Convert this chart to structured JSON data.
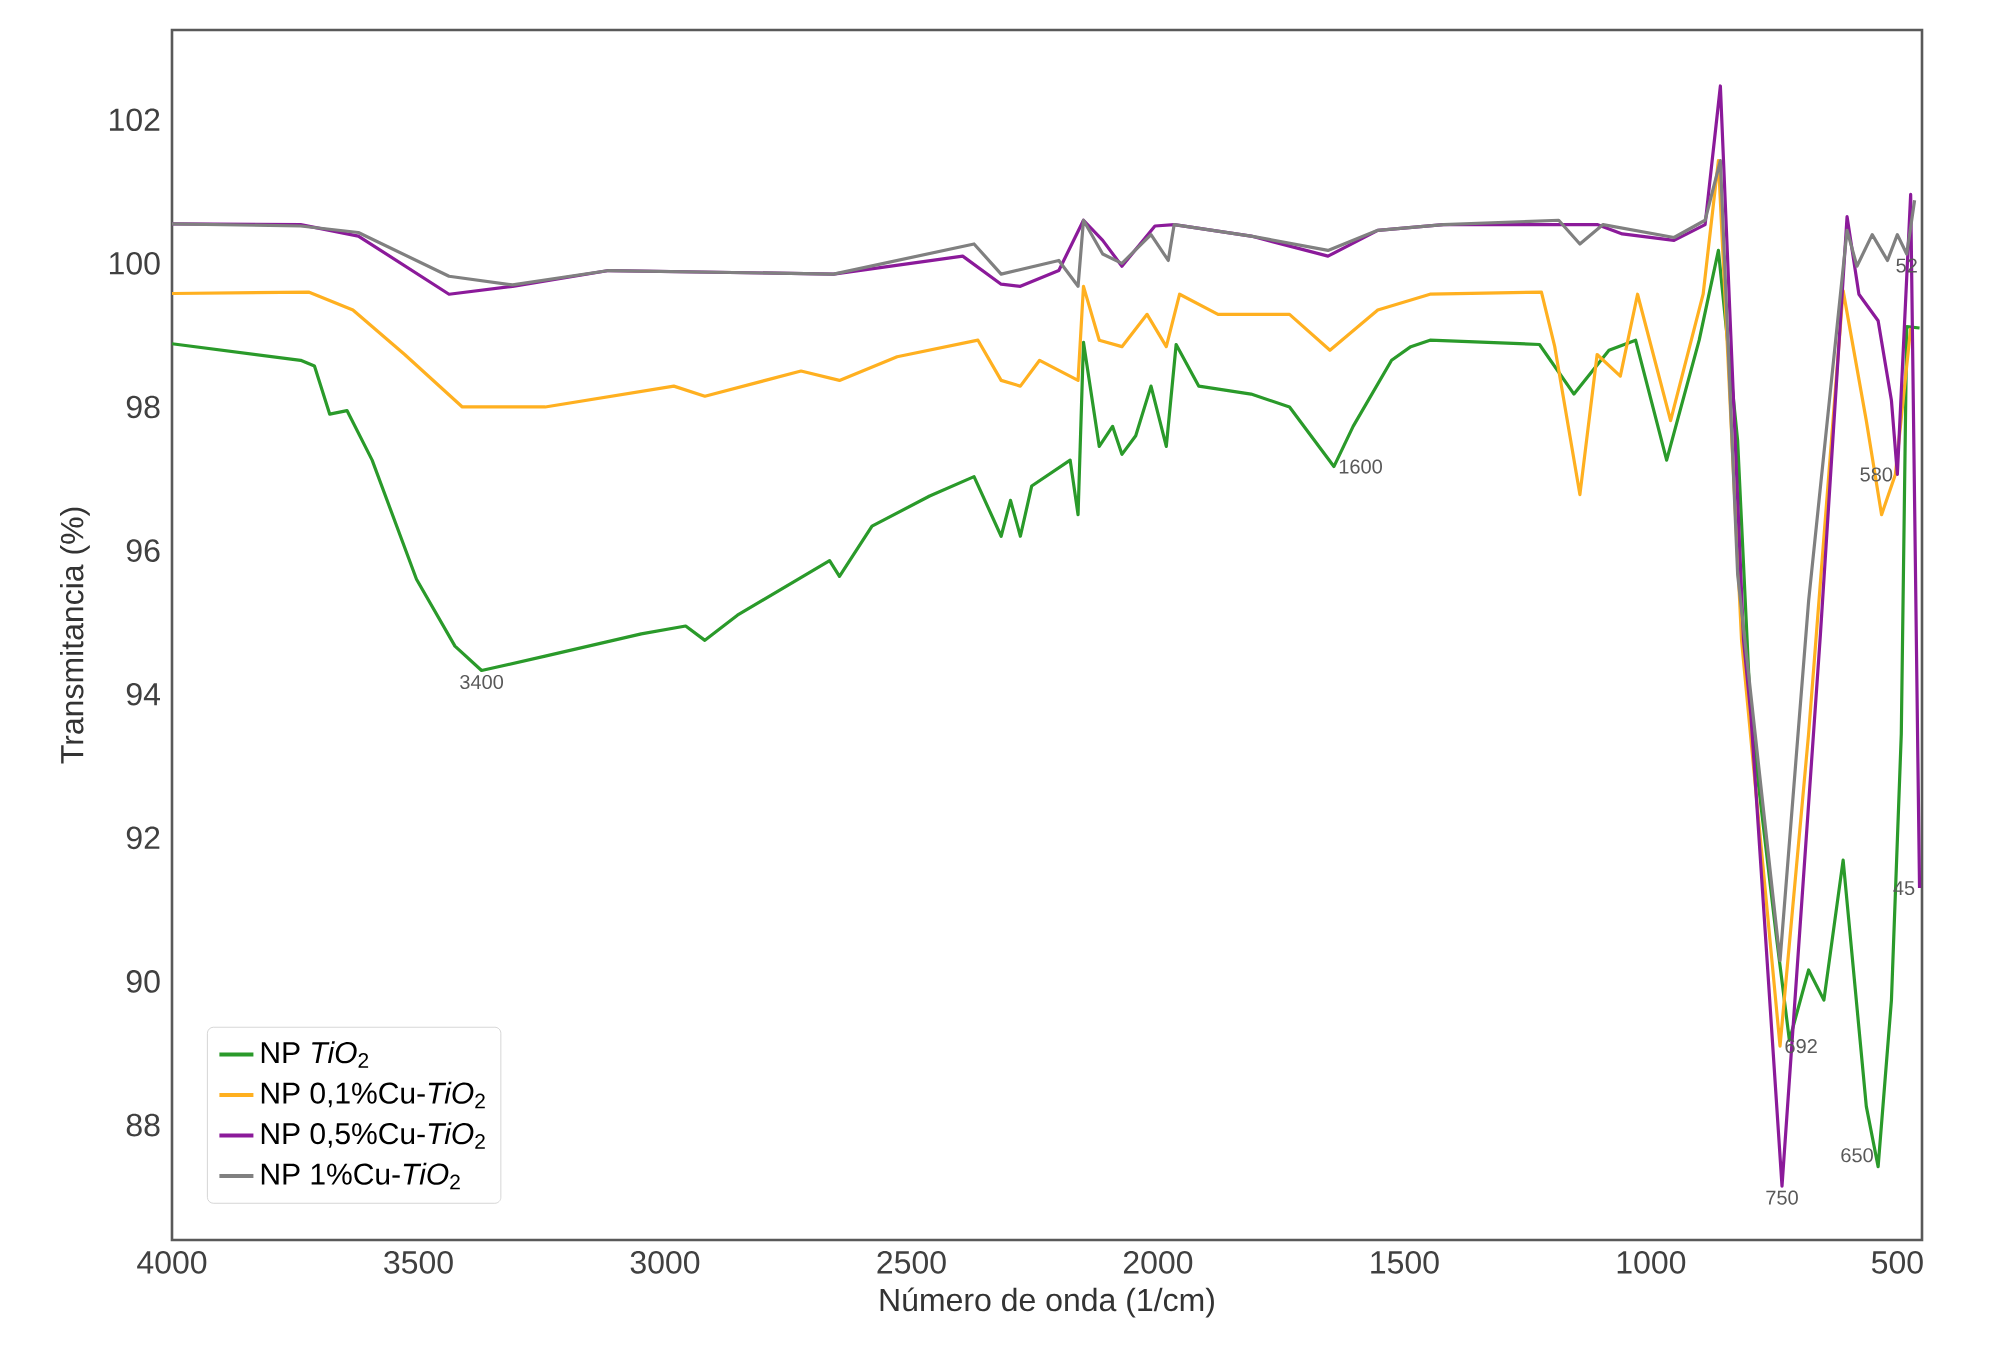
{
  "chart_data": {
    "type": "line",
    "xlabel": "Número de onda (1/cm)",
    "ylabel": "Transmitancia (%)",
    "xlim": [
      4000,
      450
    ],
    "ylim": [
      86.4,
      103.25
    ],
    "xticks": [
      4000,
      3500,
      3000,
      2500,
      2000,
      1500,
      1000,
      500
    ],
    "yticks": [
      88,
      90,
      92,
      94,
      96,
      98,
      100,
      102
    ],
    "grid": false,
    "legend": "bottom left",
    "series": [
      {
        "name": "NP *TiO*$_{2}$",
        "color": "#2a9a2a",
        "x": [
          4000,
          3739,
          3711,
          3680,
          3645,
          3594,
          3504,
          3426,
          3372,
          3243,
          3048,
          2958,
          2919,
          2853,
          2666,
          2646,
          2580,
          2463,
          2373,
          2318,
          2299,
          2279,
          2256,
          2178,
          2162,
          2151,
          2119,
          2092,
          2073,
          2045,
          2014,
          1983,
          1963,
          1917,
          1811,
          1733,
          1682,
          1643,
          1604,
          1526,
          1487,
          1448,
          1226,
          1156,
          1085,
          1031,
          968,
          902,
          863,
          824,
          797,
          746,
          719,
          680,
          649,
          610,
          563,
          539,
          512,
          492,
          481,
          455
        ],
        "values": [
          98.88,
          98.65,
          98.57,
          97.9,
          97.95,
          97.26,
          95.6,
          94.67,
          94.33,
          94.53,
          94.84,
          94.95,
          94.75,
          95.1,
          95.86,
          95.64,
          96.34,
          96.76,
          97.03,
          96.2,
          96.7,
          96.2,
          96.9,
          97.26,
          96.5,
          98.9,
          97.45,
          97.73,
          97.34,
          97.6,
          98.29,
          97.45,
          98.87,
          98.29,
          98.18,
          98.0,
          97.53,
          97.17,
          97.73,
          98.65,
          98.84,
          98.93,
          98.87,
          98.18,
          98.79,
          98.93,
          97.26,
          98.93,
          100.18,
          97.53,
          93.63,
          90.66,
          89.18,
          90.16,
          89.74,
          91.69,
          88.26,
          87.42,
          89.74,
          93.45,
          99.12,
          99.1
        ]
      },
      {
        "name": "NP 0,1%Cu-*TiO*$_{2}$",
        "color": "#ffb020",
        "x": [
          4000,
          3723,
          3633,
          3528,
          3411,
          3243,
          2982,
          2919,
          2724,
          2646,
          2529,
          2365,
          2318,
          2279,
          2240,
          2162,
          2151,
          2119,
          2073,
          2022,
          1983,
          1956,
          1878,
          1733,
          1651,
          1554,
          1448,
          1222,
          1195,
          1144,
          1109,
          1062,
          1027,
          960,
          894,
          863,
          816,
          738,
          680,
          610,
          563,
          532,
          504,
          473
        ],
        "values": [
          99.58,
          99.6,
          99.35,
          98.73,
          98.0,
          98.0,
          98.29,
          98.15,
          98.5,
          98.37,
          98.7,
          98.93,
          98.37,
          98.29,
          98.65,
          98.37,
          99.68,
          98.93,
          98.84,
          99.29,
          98.84,
          99.57,
          99.29,
          99.29,
          98.79,
          99.35,
          99.57,
          99.6,
          98.84,
          96.78,
          98.73,
          98.43,
          99.57,
          97.81,
          99.57,
          101.43,
          94.75,
          89.1,
          93.45,
          99.62,
          97.81,
          96.5,
          97.06,
          99.1
        ]
      },
      {
        "name": "NP 0,5%Cu-*TiO*$_{2}$",
        "color": "#8b1a9a",
        "x": [
          4000,
          3739,
          3622,
          3438,
          3309,
          3114,
          2658,
          2396,
          2318,
          2279,
          2201,
          2151,
          2112,
          2073,
          2006,
          1967,
          1811,
          1655,
          1554,
          1421,
          1109,
          1058,
          953,
          890,
          859,
          812,
          797,
          734,
          656,
          602,
          578,
          539,
          512,
          500,
          473,
          455
        ],
        "values": [
          100.55,
          100.54,
          100.38,
          99.57,
          99.68,
          99.9,
          99.85,
          100.1,
          99.71,
          99.68,
          99.9,
          100.6,
          100.32,
          99.96,
          100.52,
          100.54,
          100.38,
          100.1,
          100.46,
          100.54,
          100.54,
          100.41,
          100.32,
          100.54,
          102.47,
          94.75,
          93.7,
          87.15,
          94.84,
          100.65,
          99.57,
          99.2,
          98.09,
          97.06,
          100.96,
          91.3
        ]
      },
      {
        "name": "NP 1%Cu-*TiO*$_{2}$",
        "color": "#808080",
        "x": [
          4000,
          3739,
          3622,
          3438,
          3309,
          3114,
          2658,
          2373,
          2318,
          2201,
          2162,
          2151,
          2112,
          2073,
          2014,
          1979,
          1967,
          1811,
          1655,
          1554,
          1421,
          1187,
          1144,
          1097,
          953,
          890,
          859,
          824,
          738,
          680,
          602,
          582,
          551,
          520,
          500,
          481,
          465
        ],
        "values": [
          100.55,
          100.52,
          100.43,
          99.82,
          99.7,
          99.9,
          99.85,
          100.27,
          99.85,
          100.04,
          99.68,
          100.6,
          100.13,
          100.0,
          100.4,
          100.04,
          100.54,
          100.38,
          100.18,
          100.46,
          100.54,
          100.6,
          100.27,
          100.54,
          100.36,
          100.6,
          101.43,
          95.67,
          90.29,
          95.3,
          100.46,
          99.96,
          100.4,
          100.04,
          100.4,
          100.13,
          100.88
        ]
      }
    ],
    "annotations": [
      {
        "text": "3400",
        "x": 3372,
        "y": 94.33
      },
      {
        "text": "1600",
        "x": 1643,
        "y": 97.17
      },
      {
        "text": "750",
        "x": 734,
        "y": 87.15
      },
      {
        "text": "692",
        "x": 738,
        "y": 89.1
      },
      {
        "text": "650",
        "x": 539,
        "y": 87.42
      },
      {
        "text": "580",
        "x": 500,
        "y": 97.06
      },
      {
        "text": "52",
        "x": 481,
        "y": 100.13
      },
      {
        "text": "45",
        "x": 455,
        "y": 91.3
      }
    ]
  }
}
